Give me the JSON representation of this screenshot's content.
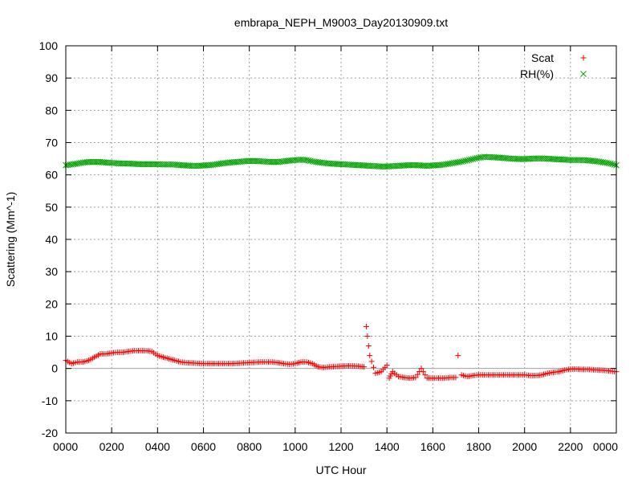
{
  "chart_data": {
    "type": "scatter",
    "title": "embrapa_NEPH_M9003_Day20130909.txt",
    "xlabel": "UTC Hour",
    "ylabel": "Scattering (Mm^-1)",
    "xlim": [
      0,
      24
    ],
    "ylim": [
      -20,
      100
    ],
    "x_ticks": [
      0,
      2,
      4,
      6,
      8,
      10,
      12,
      14,
      16,
      18,
      20,
      22,
      24
    ],
    "x_tick_labels": [
      "0000",
      "0200",
      "0400",
      "0600",
      "0800",
      "1000",
      "1200",
      "1400",
      "1600",
      "1800",
      "2000",
      "2200",
      "0000"
    ],
    "y_ticks": [
      -20,
      -10,
      0,
      10,
      20,
      30,
      40,
      50,
      60,
      70,
      80,
      90,
      100
    ],
    "y_tick_labels": [
      "-20",
      "-10",
      "0",
      "10",
      "20",
      "30",
      "40",
      "50",
      "60",
      "70",
      "80",
      "90",
      "100"
    ],
    "grid": true,
    "zero_line": true,
    "legend_position": "top-right",
    "colors": {
      "scat": "#ff0000",
      "rh": "#00a000",
      "zero": "#a0a0a0",
      "grid": "#a0a0a0"
    },
    "series": [
      {
        "name": "Scat",
        "marker": "plus",
        "color": "#ff0000",
        "x": [
          0.0,
          0.25,
          0.5,
          0.75,
          1.0,
          1.25,
          1.5,
          1.75,
          2.0,
          2.25,
          2.5,
          2.75,
          3.0,
          3.25,
          3.5,
          3.75,
          4.0,
          4.25,
          4.5,
          4.75,
          5.0,
          5.25,
          5.5,
          5.75,
          6.0,
          6.25,
          6.5,
          6.75,
          7.0,
          7.25,
          7.5,
          7.75,
          8.0,
          8.25,
          8.5,
          8.75,
          9.0,
          9.25,
          9.5,
          9.75,
          10.0,
          10.25,
          10.5,
          10.75,
          11.0,
          11.25,
          11.5,
          11.75,
          12.0,
          12.25,
          12.5,
          12.75,
          13.0,
          13.1,
          13.25,
          13.5,
          13.75,
          14.0,
          14.1,
          14.25,
          14.5,
          14.75,
          15.0,
          15.25,
          15.5,
          15.75,
          16.0,
          16.25,
          16.5,
          16.75,
          17.0,
          17.1,
          17.25,
          17.5,
          17.75,
          18.0,
          18.25,
          18.5,
          18.75,
          19.0,
          19.25,
          19.5,
          19.75,
          20.0,
          20.25,
          20.5,
          20.75,
          21.0,
          21.25,
          21.5,
          21.75,
          22.0,
          22.25,
          22.5,
          22.75,
          23.0,
          23.25,
          23.5,
          23.75,
          24.0
        ],
        "y": [
          2.5,
          1.5,
          2.0,
          2.0,
          2.5,
          3.5,
          4.5,
          4.5,
          4.8,
          5.0,
          5.0,
          5.3,
          5.5,
          5.5,
          5.5,
          5.3,
          4.0,
          3.5,
          3.0,
          2.5,
          2.0,
          1.8,
          1.7,
          1.6,
          1.5,
          1.5,
          1.5,
          1.5,
          1.5,
          1.5,
          1.6,
          1.7,
          1.8,
          1.9,
          2.0,
          2.0,
          2.0,
          1.8,
          1.5,
          1.3,
          1.5,
          2.0,
          2.0,
          1.5,
          0.5,
          0.3,
          0.5,
          0.6,
          0.7,
          0.8,
          0.8,
          0.7,
          0.5,
          13.0,
          4.0,
          -1.5,
          -1.0,
          1.0,
          -3.0,
          -1.0,
          -2.5,
          -2.8,
          -3.0,
          -2.8,
          0.0,
          -3.0,
          -3.0,
          -3.0,
          -3.0,
          -2.8,
          -2.8,
          4.0,
          -2.0,
          -2.5,
          -2.2,
          -2.0,
          -2.0,
          -2.0,
          -2.0,
          -2.0,
          -2.0,
          -2.0,
          -2.0,
          -2.0,
          -2.2,
          -2.2,
          -2.0,
          -1.5,
          -1.2,
          -1.0,
          -0.5,
          -0.2,
          -0.2,
          -0.3,
          -0.3,
          -0.4,
          -0.5,
          -0.6,
          -0.8,
          -1.0
        ]
      },
      {
        "name": "RH(%)",
        "marker": "cross",
        "color": "#00a000",
        "x": [
          0.0,
          0.25,
          0.5,
          0.75,
          1.0,
          1.25,
          1.5,
          1.75,
          2.0,
          2.25,
          2.5,
          2.75,
          3.0,
          3.25,
          3.5,
          3.75,
          4.0,
          4.25,
          4.5,
          4.75,
          5.0,
          5.25,
          5.5,
          5.75,
          6.0,
          6.25,
          6.5,
          6.75,
          7.0,
          7.25,
          7.5,
          7.75,
          8.0,
          8.25,
          8.5,
          8.75,
          9.0,
          9.25,
          9.5,
          9.75,
          10.0,
          10.25,
          10.5,
          10.75,
          11.0,
          11.25,
          11.5,
          11.75,
          12.0,
          12.25,
          12.5,
          12.75,
          13.0,
          13.25,
          13.5,
          13.75,
          14.0,
          14.25,
          14.5,
          14.75,
          15.0,
          15.25,
          15.5,
          15.75,
          16.0,
          16.25,
          16.5,
          16.75,
          17.0,
          17.25,
          17.5,
          17.75,
          18.0,
          18.25,
          18.5,
          18.75,
          19.0,
          19.25,
          19.5,
          19.75,
          20.0,
          20.25,
          20.5,
          20.75,
          21.0,
          21.25,
          21.5,
          21.75,
          22.0,
          22.25,
          22.5,
          22.75,
          23.0,
          23.25,
          23.5,
          23.75,
          24.0
        ],
        "y": [
          63.0,
          63.2,
          63.5,
          63.8,
          64.0,
          64.0,
          64.0,
          63.8,
          63.7,
          63.6,
          63.5,
          63.5,
          63.4,
          63.3,
          63.3,
          63.3,
          63.3,
          63.2,
          63.2,
          63.2,
          63.0,
          62.9,
          62.8,
          62.8,
          62.9,
          63.0,
          63.2,
          63.5,
          63.7,
          63.9,
          64.0,
          64.2,
          64.3,
          64.3,
          64.2,
          64.1,
          64.0,
          64.0,
          64.2,
          64.4,
          64.6,
          64.7,
          64.6,
          64.2,
          63.9,
          63.7,
          63.5,
          63.4,
          63.3,
          63.2,
          63.1,
          63.0,
          62.9,
          62.8,
          62.7,
          62.6,
          62.6,
          62.7,
          62.8,
          62.9,
          63.0,
          63.0,
          62.9,
          62.8,
          62.9,
          63.0,
          63.2,
          63.5,
          63.8,
          64.1,
          64.5,
          64.9,
          65.3,
          65.6,
          65.5,
          65.4,
          65.3,
          65.1,
          65.0,
          64.9,
          64.9,
          65.0,
          65.1,
          65.1,
          65.0,
          64.9,
          64.8,
          64.7,
          64.6,
          64.6,
          64.6,
          64.5,
          64.3,
          64.1,
          63.8,
          63.5,
          63.0
        ]
      }
    ]
  }
}
